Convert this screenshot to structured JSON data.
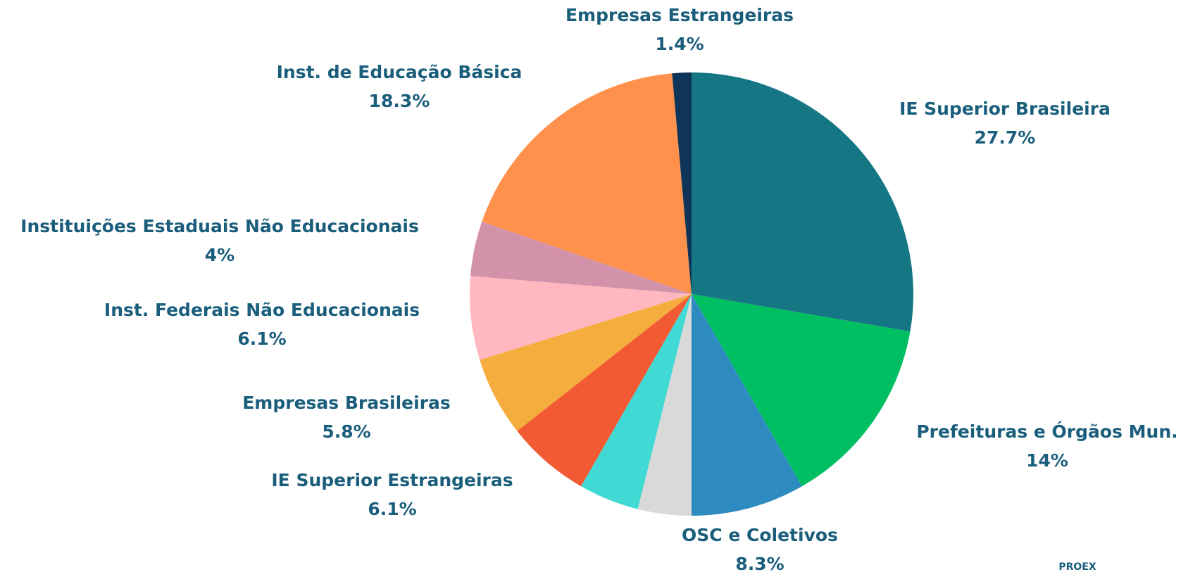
{
  "chart_data": {
    "type": "pie",
    "categories": [
      "IE Superior Brasileira",
      "Prefeituras e Órgãos Mun.",
      "OSC e Coletivos",
      null,
      null,
      "IE Superior Estrangeiras",
      "Empresas Brasileiras",
      "Inst. Federais Não Educacionais",
      "Instituições Estaduais Não Educacionais",
      "Inst. de Educação Básica",
      "Empresas Estrangeiras"
    ],
    "values": [
      27.7,
      14,
      8.3,
      3.9,
      4.4,
      6.1,
      5.8,
      6.1,
      4,
      18.3,
      1.4
    ],
    "value_labels": [
      "27.7%",
      "14%",
      "8.3%",
      null,
      null,
      "6.1%",
      "5.8%",
      "6.1%",
      "4%",
      "18.3%",
      "1.4%"
    ],
    "colors": [
      "#167784",
      "#00bf63",
      "#2e8bc0",
      "#d9d9d9",
      "#40d9d4",
      "#f15a33",
      "#f5ad3d",
      "#ffb8bf",
      "#d292a9",
      "#ff914d",
      "#0e3558"
    ],
    "logo_text": "PROEX"
  }
}
